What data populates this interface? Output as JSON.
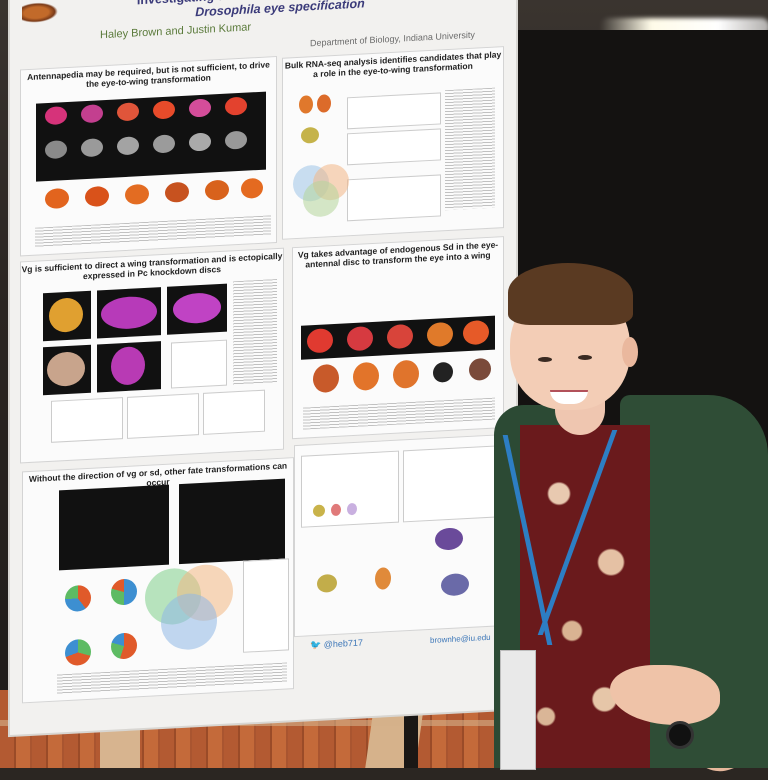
{
  "poster": {
    "title_line1": "Investigating the role of Polycomb repression in",
    "title_line2": "Drosophila eye specification",
    "authors": "Haley Brown and Justin Kumar",
    "affiliation": "Department of Biology, Indiana University",
    "panels": [
      {
        "heading": "Antennapedia may be required, but is not sufficient, to drive the eye-to-wing transformation"
      },
      {
        "heading": "Bulk RNA-seq analysis identifies candidates that play a role in the eye-to-wing transformation"
      },
      {
        "heading": "Vg is sufficient to direct a wing transformation and is ectopically expressed in Pc knockdown discs"
      },
      {
        "heading": "Vg takes advantage of endogenous Sd in the eye-antennal disc to transform the eye into a wing"
      },
      {
        "heading": "Without the direction of vg or sd, other fate transformations can occur"
      }
    ],
    "twitter_handle": "@heb717",
    "email": "brownhe@iu.edu"
  },
  "colors": {
    "title": "#3b3b7a",
    "authors": "#5a7a3a",
    "cardigan": "#2f4d36",
    "dress": "#6a1a1c",
    "lanyard": "#2d7ec4"
  }
}
